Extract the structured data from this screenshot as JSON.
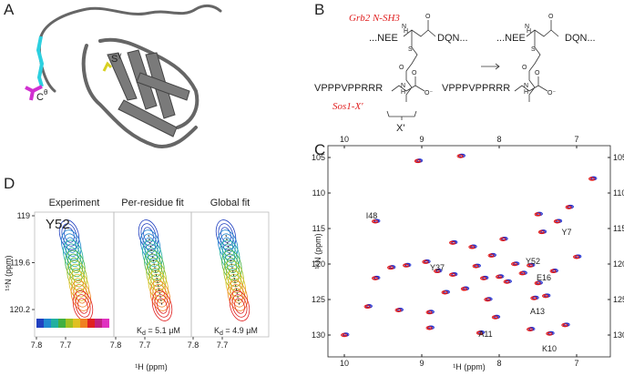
{
  "panel_a": {
    "label": "A",
    "s_gamma": {
      "base": "S",
      "sup": "γ"
    },
    "c_theta": {
      "base": "C",
      "sup": "θ"
    }
  },
  "panel_b": {
    "label": "B",
    "grb2": "Grb2 N-SH3",
    "sos1": "Sos1-X'",
    "nee": "...NEE",
    "dqn": "DQN...",
    "vpp": "VPPPVPPRRR",
    "x_prime": "X'",
    "atoms": [
      "O",
      "N",
      "H",
      "S",
      "O",
      "N",
      "H",
      "O",
      "O⁻"
    ]
  },
  "panel_c": {
    "label": "C",
    "x_label": "¹H (ppm)",
    "y_label": "¹⁵N (ppm)",
    "xticks": [
      10,
      9,
      8,
      7
    ],
    "yticks": [
      105,
      110,
      115,
      120,
      125,
      130
    ],
    "peak_labels": [
      "I48",
      "Y37",
      "Y52",
      "E16",
      "Y7",
      "A13",
      "A11",
      "K10"
    ]
  },
  "panel_d": {
    "label": "D",
    "titles": [
      "Experiment",
      "Per-residue fit",
      "Global fit"
    ],
    "residue": "Y52",
    "kd": [
      {
        "main": "K",
        "sub": "d",
        "rest": " = 5.1 μM"
      },
      {
        "main": "K",
        "sub": "d",
        "rest": " = 4.9 μM"
      }
    ],
    "xticks": [
      7.8,
      7.7
    ],
    "yticks": [
      119,
      119.6,
      120.2
    ],
    "x_label": "¹H (ppm)",
    "y_label": "¹⁵N (ppm)"
  }
}
